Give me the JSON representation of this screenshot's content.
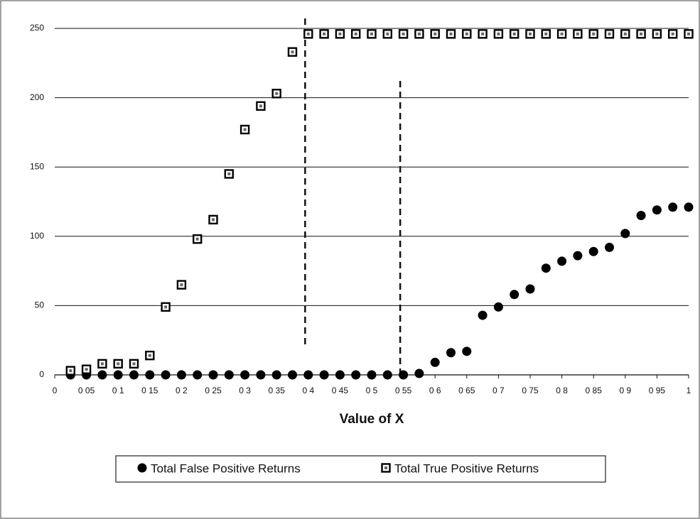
{
  "chart_data": {
    "type": "scatter",
    "xlabel": "Value of X",
    "xlim": [
      0,
      1
    ],
    "ylim": [
      0,
      250
    ],
    "xticks": [
      0,
      {
        "value": 0.05,
        "label": "0 05"
      },
      {
        "value": 0.1,
        "label": "0 1"
      },
      {
        "value": 0.15,
        "label": "0 15"
      },
      {
        "value": 0.2,
        "label": "0 2"
      },
      {
        "value": 0.25,
        "label": "0 25"
      },
      {
        "value": 0.3,
        "label": "0 3"
      },
      {
        "value": 0.35,
        "label": "0 35"
      },
      {
        "value": 0.4,
        "label": "0 4"
      },
      {
        "value": 0.45,
        "label": "0 45"
      },
      {
        "value": 0.5,
        "label": "0 5"
      },
      {
        "value": 0.55,
        "label": "0 55"
      },
      {
        "value": 0.6,
        "label": "0 6"
      },
      {
        "value": 0.65,
        "label": "0 65"
      },
      {
        "value": 0.7,
        "label": "0 7"
      },
      {
        "value": 0.75,
        "label": "0 75"
      },
      {
        "value": 0.8,
        "label": "0 8"
      },
      {
        "value": 0.85,
        "label": "0 85"
      },
      {
        "value": 0.9,
        "label": "0 9"
      },
      {
        "value": 0.95,
        "label": "0 95"
      },
      1
    ],
    "yticks": [
      0,
      50,
      100,
      150,
      200,
      250
    ],
    "grid": true,
    "x": [
      0.025,
      0.05,
      0.075,
      0.1,
      0.125,
      0.15,
      0.175,
      0.2,
      0.225,
      0.25,
      0.275,
      0.3,
      0.325,
      0.35,
      0.375,
      0.4,
      0.425,
      0.45,
      0.475,
      0.5,
      0.525,
      0.55,
      0.575,
      0.6,
      0.625,
      0.65,
      0.675,
      0.7,
      0.725,
      0.75,
      0.775,
      0.8,
      0.825,
      0.85,
      0.875,
      0.9,
      0.925,
      0.95,
      0.975,
      1.0
    ],
    "series": [
      {
        "name": "Total False Positive Returns",
        "color": "#000000",
        "marker": "circle",
        "values": [
          0,
          0,
          0,
          0,
          0,
          0,
          0,
          0,
          0,
          0,
          0,
          0,
          0,
          0,
          0,
          0,
          0,
          0,
          0,
          0,
          0,
          0,
          1,
          9,
          16,
          17,
          43,
          49,
          58,
          62,
          77,
          82,
          86,
          89,
          92,
          102,
          115,
          119,
          121,
          121
        ]
      },
      {
        "name": "Total True Positive Returns",
        "color": "#000000",
        "marker": "square",
        "values": [
          3,
          4,
          8,
          8,
          8,
          14,
          49,
          65,
          98,
          112,
          145,
          177,
          194,
          203,
          233,
          246,
          246,
          246,
          246,
          246,
          246,
          246,
          246,
          246,
          246,
          246,
          246,
          246,
          246,
          246,
          246,
          246,
          246,
          246,
          246,
          246,
          246,
          246,
          246,
          246
        ]
      }
    ],
    "vlines": [
      {
        "x": 0.395,
        "ymin": 22,
        "ymax": 258
      },
      {
        "x": 0.545,
        "ymin": 0,
        "ymax": 213
      }
    ]
  }
}
